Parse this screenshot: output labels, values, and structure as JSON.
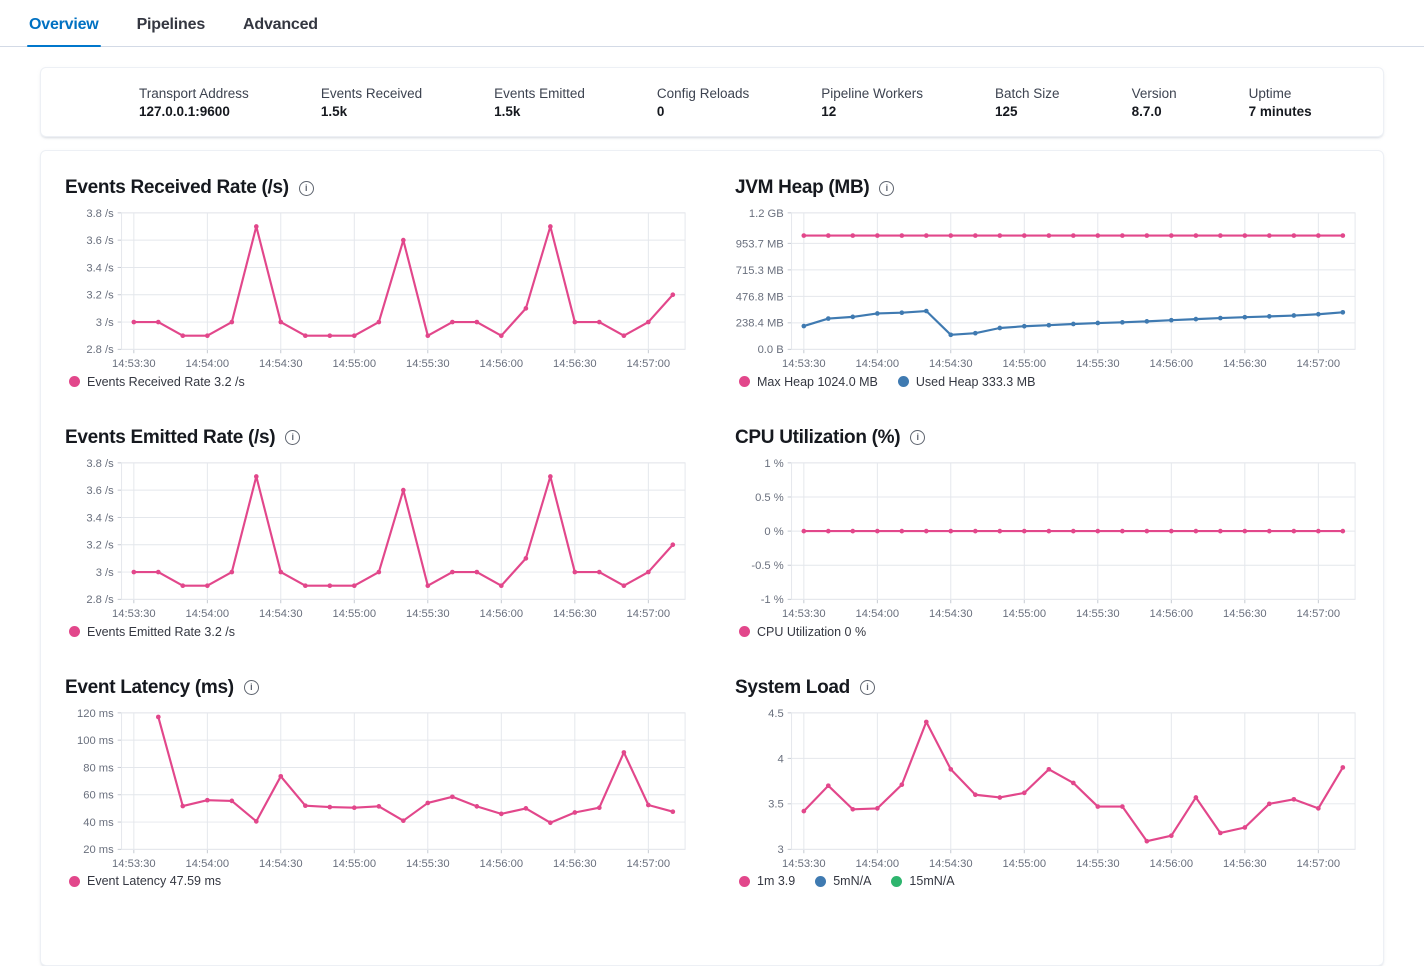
{
  "tabs": [
    {
      "label": "Overview",
      "active": true
    },
    {
      "label": "Pipelines",
      "active": false
    },
    {
      "label": "Advanced",
      "active": false
    }
  ],
  "stats": [
    {
      "label": "Transport Address",
      "value": "127.0.0.1:9600"
    },
    {
      "label": "Events Received",
      "value": "1.5k"
    },
    {
      "label": "Events Emitted",
      "value": "1.5k"
    },
    {
      "label": "Config Reloads",
      "value": "0"
    },
    {
      "label": "Pipeline Workers",
      "value": "12"
    },
    {
      "label": "Batch Size",
      "value": "125"
    },
    {
      "label": "Version",
      "value": "8.7.0"
    },
    {
      "label": "Uptime",
      "value": "7 minutes"
    }
  ],
  "colors": {
    "pink": "#e2478b",
    "blue": "#3f7ab1",
    "green": "#2eb56e",
    "grid": "#e4e7ec",
    "tick": "#c4c9d1",
    "axis_text": "#696f7d",
    "accent": "#0077cc"
  },
  "chart_data": [
    {
      "type": "line",
      "title": "Events Received Rate (/s)",
      "x_tick_labels": [
        "14:53:30",
        "14:54:00",
        "14:54:30",
        "14:55:00",
        "14:55:30",
        "14:56:00",
        "14:56:30",
        "14:57:00"
      ],
      "x_ticks": [
        0,
        30,
        60,
        90,
        120,
        150,
        180,
        210
      ],
      "x_domain": [
        -5,
        225
      ],
      "ylim": [
        2.8,
        3.8
      ],
      "y_ticks": [
        {
          "v": 2.8,
          "label": "2.8 /s"
        },
        {
          "v": 3,
          "label": "3 /s"
        },
        {
          "v": 3.2,
          "label": "3.2 /s"
        },
        {
          "v": 3.4,
          "label": "3.4 /s"
        },
        {
          "v": 3.6,
          "label": "3.6 /s"
        },
        {
          "v": 3.8,
          "label": "3.8 /s"
        }
      ],
      "series": [
        {
          "name": "Events Received Rate",
          "color_key": "pink",
          "t0": 0,
          "dt": 10,
          "values": [
            3,
            3,
            2.9,
            2.9,
            3,
            3.7,
            3,
            2.9,
            2.9,
            2.9,
            3,
            3.6,
            2.9,
            3,
            3,
            2.9,
            3.1,
            3.7,
            3,
            3,
            2.9,
            3,
            3.2
          ]
        }
      ],
      "legend": [
        {
          "label": "Events Received Rate 3.2 /s",
          "color_key": "pink"
        }
      ]
    },
    {
      "type": "line",
      "title": "JVM Heap (MB)",
      "x_tick_labels": [
        "14:53:30",
        "14:54:00",
        "14:54:30",
        "14:55:00",
        "14:55:30",
        "14:56:00",
        "14:56:30",
        "14:57:00"
      ],
      "x_ticks": [
        0,
        30,
        60,
        90,
        120,
        150,
        180,
        210
      ],
      "x_domain": [
        -5,
        225
      ],
      "ylim": [
        0,
        1228.8
      ],
      "y_ticks": [
        {
          "v": 0,
          "label": "0.0 B"
        },
        {
          "v": 238.4,
          "label": "238.4 MB"
        },
        {
          "v": 476.8,
          "label": "476.8 MB"
        },
        {
          "v": 715.3,
          "label": "715.3 MB"
        },
        {
          "v": 953.7,
          "label": "953.7 MB"
        },
        {
          "v": 1228.8,
          "label": "1.2 GB"
        }
      ],
      "series": [
        {
          "name": "Max Heap",
          "color_key": "pink",
          "t0": 0,
          "dt": 10,
          "values": [
            1024,
            1024,
            1024,
            1024,
            1024,
            1024,
            1024,
            1024,
            1024,
            1024,
            1024,
            1024,
            1024,
            1024,
            1024,
            1024,
            1024,
            1024,
            1024,
            1024,
            1024,
            1024,
            1024
          ]
        },
        {
          "name": "Used Heap",
          "color_key": "blue",
          "t0": 0,
          "dt": 10,
          "values": [
            210,
            277,
            292,
            323,
            330,
            345,
            131,
            146,
            192,
            208,
            218,
            228,
            237,
            243,
            252,
            262,
            272,
            282,
            290,
            297,
            305,
            316,
            333.3
          ]
        }
      ],
      "legend": [
        {
          "label": "Max Heap 1024.0 MB",
          "color_key": "pink"
        },
        {
          "label": "Used Heap 333.3 MB",
          "color_key": "blue"
        }
      ]
    },
    {
      "type": "line",
      "title": "Events Emitted Rate (/s)",
      "x_tick_labels": [
        "14:53:30",
        "14:54:00",
        "14:54:30",
        "14:55:00",
        "14:55:30",
        "14:56:00",
        "14:56:30",
        "14:57:00"
      ],
      "x_ticks": [
        0,
        30,
        60,
        90,
        120,
        150,
        180,
        210
      ],
      "x_domain": [
        -5,
        225
      ],
      "ylim": [
        2.8,
        3.8
      ],
      "y_ticks": [
        {
          "v": 2.8,
          "label": "2.8 /s"
        },
        {
          "v": 3,
          "label": "3 /s"
        },
        {
          "v": 3.2,
          "label": "3.2 /s"
        },
        {
          "v": 3.4,
          "label": "3.4 /s"
        },
        {
          "v": 3.6,
          "label": "3.6 /s"
        },
        {
          "v": 3.8,
          "label": "3.8 /s"
        }
      ],
      "series": [
        {
          "name": "Events Emitted Rate",
          "color_key": "pink",
          "t0": 0,
          "dt": 10,
          "values": [
            3,
            3,
            2.9,
            2.9,
            3,
            3.7,
            3,
            2.9,
            2.9,
            2.9,
            3,
            3.6,
            2.9,
            3,
            3,
            2.9,
            3.1,
            3.7,
            3,
            3,
            2.9,
            3,
            3.2
          ]
        }
      ],
      "legend": [
        {
          "label": "Events Emitted Rate 3.2 /s",
          "color_key": "pink"
        }
      ]
    },
    {
      "type": "line",
      "title": "CPU Utilization (%)",
      "x_tick_labels": [
        "14:53:30",
        "14:54:00",
        "14:54:30",
        "14:55:00",
        "14:55:30",
        "14:56:00",
        "14:56:30",
        "14:57:00"
      ],
      "x_ticks": [
        0,
        30,
        60,
        90,
        120,
        150,
        180,
        210
      ],
      "x_domain": [
        -5,
        225
      ],
      "ylim": [
        -1,
        1
      ],
      "y_ticks": [
        {
          "v": -1,
          "label": "-1 %"
        },
        {
          "v": -0.5,
          "label": "-0.5 %"
        },
        {
          "v": 0,
          "label": "0 %"
        },
        {
          "v": 0.5,
          "label": "0.5 %"
        },
        {
          "v": 1,
          "label": "1 %"
        }
      ],
      "series": [
        {
          "name": "CPU Utilization",
          "color_key": "pink",
          "t0": 0,
          "dt": 10,
          "values": [
            0,
            0,
            0,
            0,
            0,
            0,
            0,
            0,
            0,
            0,
            0,
            0,
            0,
            0,
            0,
            0,
            0,
            0,
            0,
            0,
            0,
            0,
            0
          ]
        }
      ],
      "legend": [
        {
          "label": "CPU Utilization 0 %",
          "color_key": "pink"
        }
      ]
    },
    {
      "type": "line",
      "title": "Event Latency (ms)",
      "x_tick_labels": [
        "14:53:30",
        "14:54:00",
        "14:54:30",
        "14:55:00",
        "14:55:30",
        "14:56:00",
        "14:56:30",
        "14:57:00"
      ],
      "x_ticks": [
        0,
        30,
        60,
        90,
        120,
        150,
        180,
        210
      ],
      "x_domain": [
        -5,
        225
      ],
      "ylim": [
        20,
        120
      ],
      "y_ticks": [
        {
          "v": 20,
          "label": "20 ms"
        },
        {
          "v": 40,
          "label": "40 ms"
        },
        {
          "v": 60,
          "label": "60 ms"
        },
        {
          "v": 80,
          "label": "80 ms"
        },
        {
          "v": 100,
          "label": "100 ms"
        },
        {
          "v": 120,
          "label": "120 ms"
        }
      ],
      "series": [
        {
          "name": "Event Latency",
          "color_key": "pink",
          "t0": 10,
          "dt": 10,
          "values": [
            117,
            51.7,
            56,
            55.5,
            40.5,
            73.5,
            52,
            51,
            50.5,
            51.5,
            41,
            54,
            58.5,
            51.5,
            46,
            50,
            39.5,
            47,
            50.5,
            91,
            52.5,
            47.59
          ]
        }
      ],
      "legend": [
        {
          "label": "Event Latency 47.59 ms",
          "color_key": "pink"
        }
      ]
    },
    {
      "type": "line",
      "title": "System Load",
      "x_tick_labels": [
        "14:53:30",
        "14:54:00",
        "14:54:30",
        "14:55:00",
        "14:55:30",
        "14:56:00",
        "14:56:30",
        "14:57:00"
      ],
      "x_ticks": [
        0,
        30,
        60,
        90,
        120,
        150,
        180,
        210
      ],
      "x_domain": [
        -5,
        225
      ],
      "ylim": [
        3,
        4.5
      ],
      "y_ticks": [
        {
          "v": 3,
          "label": "3"
        },
        {
          "v": 3.5,
          "label": "3.5"
        },
        {
          "v": 4,
          "label": "4"
        },
        {
          "v": 4.5,
          "label": "4.5"
        }
      ],
      "series": [
        {
          "name": "1m",
          "color_key": "pink",
          "t0": 0,
          "dt": 10,
          "values": [
            3.42,
            3.7,
            3.44,
            3.45,
            3.71,
            4.4,
            3.88,
            3.6,
            3.57,
            3.62,
            3.88,
            3.73,
            3.47,
            3.47,
            3.09,
            3.15,
            3.57,
            3.18,
            3.24,
            3.5,
            3.55,
            3.45,
            3.9
          ]
        }
      ],
      "legend": [
        {
          "label": "1m 3.9",
          "color_key": "pink"
        },
        {
          "label": "5mN/A",
          "color_key": "blue"
        },
        {
          "label": "15mN/A",
          "color_key": "green"
        }
      ]
    }
  ]
}
